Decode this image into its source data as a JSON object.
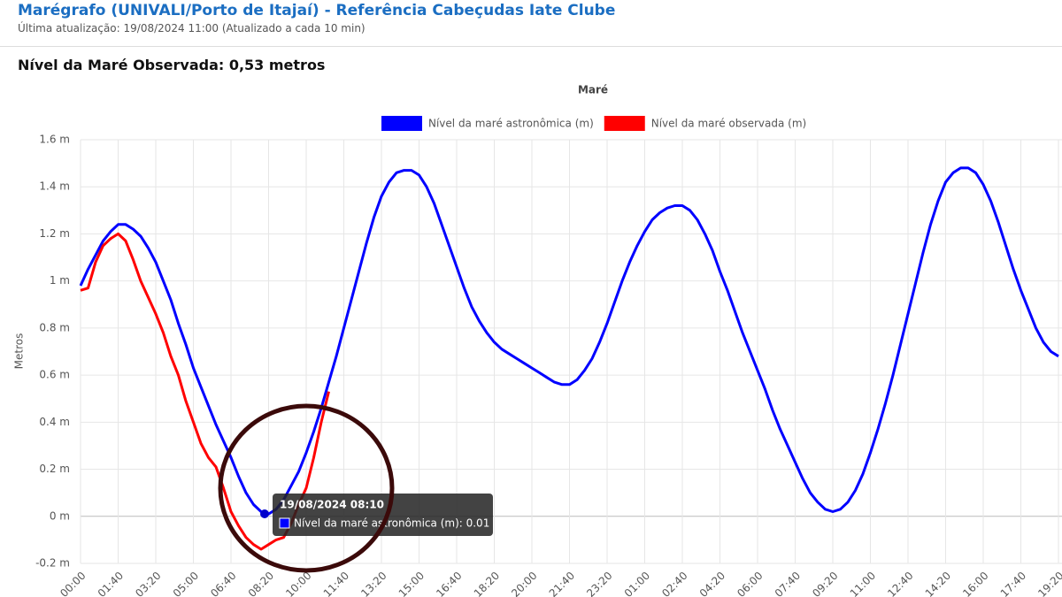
{
  "header": {
    "title": "Marégrafo (UNIVALI/Porto de Itajaí) - Referência Cabeçudas Iate Clube",
    "subtitle": "Última atualização: 19/08/2024 11:00 (Atualizado a cada 10 min)",
    "headline": "Nível da Maré Observada: 0,53 metros"
  },
  "chart_data": {
    "type": "line",
    "title": "Maré",
    "ylabel": "Metros",
    "grid": true,
    "legend": "top",
    "categories": [
      "00:00",
      null,
      null,
      null,
      null,
      "01:40",
      null,
      null,
      null,
      null,
      "03:20",
      null,
      null,
      null,
      null,
      "05:00",
      null,
      null,
      null,
      null,
      "06:40",
      null,
      null,
      null,
      null,
      "08:20",
      null,
      null,
      null,
      null,
      "10:00",
      null,
      null,
      null,
      null,
      "11:40",
      null,
      null,
      null,
      null,
      "13:20",
      null,
      null,
      null,
      null,
      "15:00",
      null,
      null,
      null,
      null,
      "16:40",
      null,
      null,
      null,
      null,
      "18:20",
      null,
      null,
      null,
      null,
      "20:00",
      null,
      null,
      null,
      null,
      "21:40",
      null,
      null,
      null,
      null,
      "23:20",
      null,
      null,
      null,
      null,
      "01:00",
      null,
      null,
      null,
      null,
      "02:40",
      null,
      null,
      null,
      null,
      "04:20",
      null,
      null,
      null,
      null,
      "06:00",
      null,
      null,
      null,
      null,
      "07:40",
      null,
      null,
      null,
      null,
      "09:20",
      null,
      null,
      null,
      null,
      "11:00",
      null,
      null,
      null,
      null,
      "12:40",
      null,
      null,
      null,
      null,
      "14:20",
      null,
      null,
      null,
      null,
      "16:00",
      null,
      null,
      null,
      null,
      "17:40",
      null,
      null,
      null,
      null,
      "19:20"
    ],
    "ylim": [
      -0.2,
      1.6
    ],
    "yticks": [
      {
        "value": -0.2,
        "label": "-0.2 m"
      },
      {
        "value": 0,
        "label": "0 m"
      },
      {
        "value": 0.2,
        "label": "0.2 m"
      },
      {
        "value": 0.4,
        "label": "0.4 m"
      },
      {
        "value": 0.6,
        "label": "0.6 m"
      },
      {
        "value": 0.8,
        "label": "0.8 m"
      },
      {
        "value": 1,
        "label": "1 m"
      },
      {
        "value": 1.2,
        "label": "1.2 m"
      },
      {
        "value": 1.4,
        "label": "1.4 m"
      },
      {
        "value": 1.6,
        "label": "1.6 m"
      }
    ],
    "series": [
      {
        "name": "Nível da maré astronômica (m)",
        "color": "#0000ff",
        "values": [
          0.98,
          1.05,
          1.11,
          1.17,
          1.21,
          1.24,
          1.24,
          1.22,
          1.19,
          1.14,
          1.08,
          1.0,
          0.92,
          0.82,
          0.73,
          0.63,
          0.55,
          0.47,
          0.39,
          0.32,
          0.25,
          0.17,
          0.1,
          0.05,
          0.02,
          0.01,
          0.03,
          0.07,
          0.13,
          0.19,
          0.27,
          0.36,
          0.46,
          0.57,
          0.68,
          0.8,
          0.92,
          1.04,
          1.16,
          1.27,
          1.36,
          1.42,
          1.46,
          1.47,
          1.47,
          1.45,
          1.4,
          1.33,
          1.24,
          1.15,
          1.06,
          0.97,
          0.89,
          0.83,
          0.78,
          0.74,
          0.71,
          0.69,
          0.67,
          0.65,
          0.63,
          0.61,
          0.59,
          0.57,
          0.56,
          0.56,
          0.58,
          0.62,
          0.67,
          0.74,
          0.82,
          0.91,
          1.0,
          1.08,
          1.15,
          1.21,
          1.26,
          1.29,
          1.31,
          1.32,
          1.32,
          1.3,
          1.26,
          1.2,
          1.13,
          1.04,
          0.96,
          0.87,
          0.78,
          0.7,
          0.62,
          0.54,
          0.45,
          0.37,
          0.3,
          0.23,
          0.16,
          0.1,
          0.06,
          0.03,
          0.02,
          0.03,
          0.06,
          0.11,
          0.18,
          0.27,
          0.37,
          0.48,
          0.6,
          0.73,
          0.86,
          0.99,
          1.12,
          1.24,
          1.34,
          1.42,
          1.46,
          1.48,
          1.48,
          1.46,
          1.41,
          1.34,
          1.25,
          1.15,
          1.05,
          0.96,
          0.88,
          0.8,
          0.74,
          0.7,
          0.68
        ]
      },
      {
        "name": "Nível da maré observada (m)",
        "color": "#ff0000",
        "values": [
          0.96,
          0.97,
          1.08,
          1.15,
          1.18,
          1.2,
          1.17,
          1.09,
          1.0,
          0.93,
          0.86,
          0.78,
          0.68,
          0.6,
          0.49,
          0.4,
          0.31,
          0.25,
          0.21,
          0.12,
          0.02,
          -0.04,
          -0.09,
          -0.12,
          -0.14,
          -0.12,
          -0.1,
          -0.09,
          -0.03,
          0.05,
          0.12,
          0.25,
          0.4,
          0.53,
          null,
          null,
          null,
          null,
          null,
          null,
          null,
          null,
          null,
          null,
          null,
          null,
          null,
          null,
          null,
          null,
          null,
          null,
          null,
          null,
          null,
          null,
          null,
          null,
          null,
          null,
          null,
          null,
          null,
          null,
          null,
          null,
          null,
          null,
          null,
          null,
          null,
          null,
          null,
          null,
          null,
          null,
          null,
          null,
          null,
          null,
          null,
          null,
          null,
          null,
          null,
          null,
          null,
          null,
          null,
          null,
          null,
          null,
          null,
          null,
          null,
          null,
          null,
          null,
          null,
          null,
          null,
          null,
          null,
          null,
          null,
          null,
          null,
          null,
          null,
          null,
          null,
          null,
          null,
          null,
          null,
          null,
          null,
          null,
          null,
          null,
          null,
          null,
          null,
          null,
          null,
          null,
          null,
          null,
          null,
          null,
          null
        ]
      }
    ],
    "tooltip": {
      "title": "19/08/2024 08:10",
      "text": "Nível da maré astronômica (m): 0.01"
    }
  }
}
